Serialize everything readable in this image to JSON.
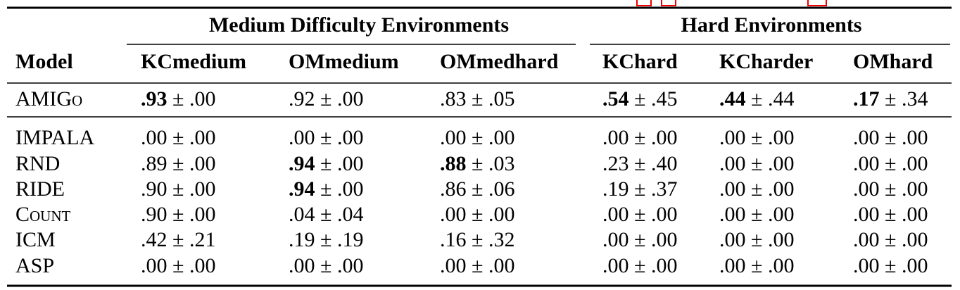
{
  "table": {
    "groups": [
      "Medium Difficulty Environments",
      "Hard Environments"
    ],
    "header": [
      "Model",
      "KCmedium",
      "OMmedium",
      "OMmedhard",
      "KChard",
      "KCharder",
      "OMhard"
    ],
    "rows": [
      {
        "model": "AMIGo",
        "smallcaps": true,
        "cells": [
          ".93 ± .00",
          ".92 ± .00",
          ".83 ± .05",
          ".54 ± .45",
          ".44 ± .44",
          ".17 ± .34"
        ],
        "bold": [
          true,
          false,
          false,
          true,
          true,
          true
        ]
      },
      {
        "model": "IMPALA",
        "smallcaps": false,
        "cells": [
          ".00 ± .00",
          ".00 ± .00",
          ".00 ± .00",
          ".00 ± .00",
          ".00 ± .00",
          ".00 ± .00"
        ],
        "bold": [
          false,
          false,
          false,
          false,
          false,
          false
        ]
      },
      {
        "model": "RND",
        "smallcaps": false,
        "cells": [
          ".89 ± .00",
          ".94 ± .00",
          ".88 ± .03",
          ".23 ± .40",
          ".00 ± .00",
          ".00 ± .00"
        ],
        "bold": [
          false,
          true,
          true,
          false,
          false,
          false
        ]
      },
      {
        "model": "RIDE",
        "smallcaps": false,
        "cells": [
          ".90 ± .00",
          ".94 ± .00",
          ".86 ± .06",
          ".19 ± .37",
          ".00 ± .00",
          ".00 ± .00"
        ],
        "bold": [
          false,
          true,
          false,
          false,
          false,
          false
        ]
      },
      {
        "model": "Count",
        "smallcaps": true,
        "cells": [
          ".90 ± .00",
          ".04 ± .04",
          ".00 ± .00",
          ".00 ± .00",
          ".00 ± .00",
          ".00 ± .00"
        ],
        "bold": [
          false,
          false,
          false,
          false,
          false,
          false
        ]
      },
      {
        "model": "ICM",
        "smallcaps": false,
        "cells": [
          ".42 ± .21",
          ".19 ± .19",
          ".16 ± .32",
          ".00 ± .00",
          ".00 ± .00",
          ".00 ± .00"
        ],
        "bold": [
          false,
          false,
          false,
          false,
          false,
          false
        ]
      },
      {
        "model": "ASP",
        "smallcaps": false,
        "cells": [
          ".00 ± .00",
          ".00 ± .00",
          ".00 ± .00",
          ".00 ± .00",
          ".00 ± .00",
          ".00 ± .00"
        ],
        "bold": [
          false,
          false,
          false,
          false,
          false,
          false
        ]
      }
    ]
  }
}
